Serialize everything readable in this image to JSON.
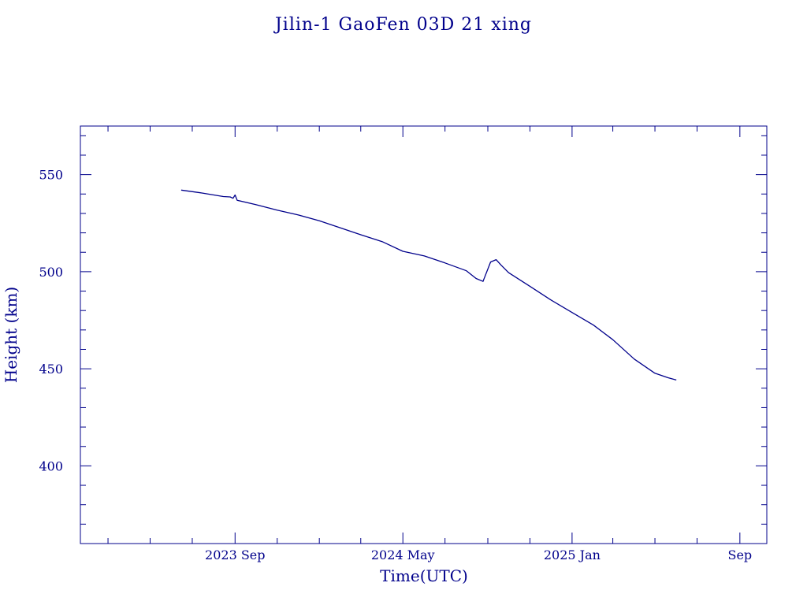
{
  "chart_data": {
    "type": "line",
    "title": "Jilin-1 GaoFen 03D 21 xing",
    "xlabel": "Time(UTC)",
    "ylabel": "Height (km)",
    "x_tick_labels": [
      {
        "date": "2023-09-01",
        "label": "2023 Sep"
      },
      {
        "date": "2024-05-01",
        "label": "2024 May"
      },
      {
        "date": "2025-01-01",
        "label": "2025 Jan"
      },
      {
        "date": "2025-09-01",
        "label": "Sep"
      }
    ],
    "y_ticks": [
      400,
      450,
      500,
      550
    ],
    "xlim": [
      "2023-01-20",
      "2025-10-10"
    ],
    "ylim": [
      360,
      575
    ],
    "color": "#00008b",
    "grid": false,
    "series": [
      {
        "x": [
          "2023-06-15",
          "2023-07-15",
          "2023-08-15",
          "2023-08-25",
          "2023-08-29",
          "2023-09-01",
          "2023-09-04",
          "2023-10-01",
          "2023-11-01",
          "2023-12-01",
          "2024-01-01",
          "2024-02-01",
          "2024-03-01",
          "2024-04-01",
          "2024-05-01",
          "2024-06-01",
          "2024-07-01",
          "2024-08-01",
          "2024-08-15",
          "2024-08-25",
          "2024-09-05",
          "2024-09-13",
          "2024-09-20",
          "2024-10-01",
          "2024-11-01",
          "2024-12-01",
          "2025-01-01",
          "2025-02-01",
          "2025-03-01",
          "2025-04-01",
          "2025-05-01",
          "2025-05-20",
          "2025-06-01"
        ],
        "y": [
          542,
          540.5,
          538.7,
          538.5,
          537.8,
          539.5,
          536.8,
          534.5,
          531.7,
          529.3,
          526.2,
          522.5,
          519,
          515.5,
          510.5,
          508.1,
          504.5,
          500.5,
          496.5,
          495,
          505,
          506.2,
          503.5,
          499.5,
          492.5,
          485.5,
          479,
          472.5,
          465,
          455,
          447.7,
          445.4,
          444.2
        ]
      }
    ]
  }
}
